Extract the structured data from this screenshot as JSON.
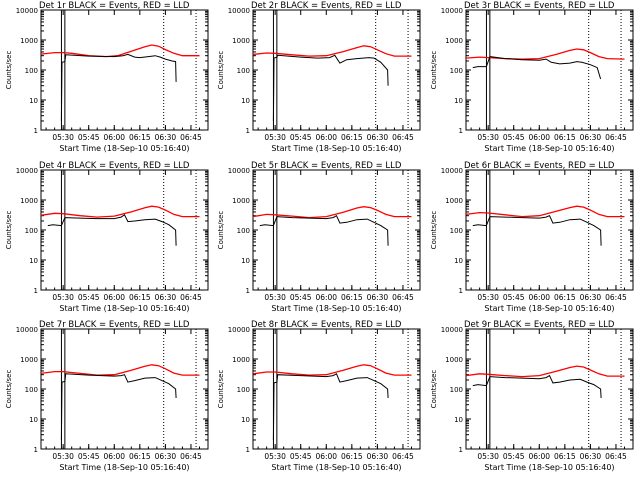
{
  "chart_data": {
    "type": "line",
    "figure": "RHESSI detector rate panels",
    "y_scale": "log",
    "ylim": [
      1,
      10000
    ],
    "y_ticks": [
      1,
      10,
      100,
      1000,
      10000
    ],
    "y_tick_labels": [
      "1",
      "10",
      "100",
      "1000",
      "10000"
    ],
    "ylabel": "Counts/sec",
    "xlabel": "Start Time (18-Sep-10 05:16:40)",
    "x_ticks": [
      "05:30",
      "05:45",
      "06:00",
      "06:15",
      "06:30",
      "06:45"
    ],
    "x_tick_minutes": [
      30,
      45,
      60,
      75,
      90,
      105
    ],
    "xlim_minutes": [
      17,
      115
    ],
    "series_colors": {
      "events": "#000000",
      "lld": "#ff0000"
    },
    "panels": [
      {
        "title": "Det 1r  BLACK = Events, RED = LLD",
        "events": [
          [
            29,
            2
          ],
          [
            29.3,
            180
          ],
          [
            31,
            190
          ],
          [
            31.5,
            320
          ],
          [
            45,
            290
          ],
          [
            60,
            280
          ],
          [
            65,
            300
          ],
          [
            68,
            330
          ],
          [
            72,
            270
          ],
          [
            75,
            260
          ],
          [
            80,
            280
          ],
          [
            84,
            300
          ],
          [
            87,
            270
          ],
          [
            90,
            230
          ],
          [
            94,
            200
          ],
          [
            96,
            190
          ],
          [
            96.3,
            40
          ]
        ],
        "lld": [
          [
            17,
            340
          ],
          [
            25,
            380
          ],
          [
            30,
            380
          ],
          [
            35,
            360
          ],
          [
            45,
            300
          ],
          [
            55,
            280
          ],
          [
            62,
            300
          ],
          [
            70,
            420
          ],
          [
            78,
            600
          ],
          [
            82,
            680
          ],
          [
            86,
            620
          ],
          [
            90,
            480
          ],
          [
            95,
            360
          ],
          [
            100,
            300
          ],
          [
            110,
            300
          ]
        ]
      },
      {
        "title": "Det 2r  BLACK = Events, RED = LLD",
        "events": [
          [
            29,
            2
          ],
          [
            29.3,
            250
          ],
          [
            31,
            270
          ],
          [
            31.5,
            310
          ],
          [
            45,
            270
          ],
          [
            55,
            250
          ],
          [
            62,
            260
          ],
          [
            65,
            310
          ],
          [
            68,
            170
          ],
          [
            72,
            220
          ],
          [
            78,
            240
          ],
          [
            85,
            260
          ],
          [
            88,
            250
          ],
          [
            92,
            180
          ],
          [
            96,
            100
          ],
          [
            96.3,
            30
          ]
        ],
        "lld": [
          [
            17,
            330
          ],
          [
            25,
            370
          ],
          [
            30,
            360
          ],
          [
            40,
            320
          ],
          [
            50,
            290
          ],
          [
            60,
            300
          ],
          [
            70,
            410
          ],
          [
            78,
            560
          ],
          [
            82,
            640
          ],
          [
            86,
            600
          ],
          [
            90,
            470
          ],
          [
            95,
            350
          ],
          [
            100,
            290
          ],
          [
            110,
            290
          ]
        ]
      },
      {
        "title": "Det 3r  BLACK = Events, RED = LLD",
        "events": [
          [
            21,
            120
          ],
          [
            24,
            130
          ],
          [
            29,
            130
          ],
          [
            31,
            280
          ],
          [
            40,
            240
          ],
          [
            50,
            220
          ],
          [
            60,
            210
          ],
          [
            64,
            230
          ],
          [
            67,
            180
          ],
          [
            72,
            160
          ],
          [
            78,
            170
          ],
          [
            82,
            190
          ],
          [
            85,
            180
          ],
          [
            90,
            150
          ],
          [
            94,
            120
          ],
          [
            96,
            50
          ]
        ],
        "lld": [
          [
            17,
            250
          ],
          [
            25,
            270
          ],
          [
            30,
            260
          ],
          [
            40,
            240
          ],
          [
            50,
            230
          ],
          [
            60,
            240
          ],
          [
            70,
            330
          ],
          [
            78,
            450
          ],
          [
            82,
            500
          ],
          [
            86,
            470
          ],
          [
            90,
            380
          ],
          [
            95,
            280
          ],
          [
            100,
            240
          ],
          [
            110,
            230
          ]
        ]
      },
      {
        "title": "Det 4r  BLACK = Events, RED = LLD",
        "events": [
          [
            21,
            140
          ],
          [
            24,
            150
          ],
          [
            29,
            140
          ],
          [
            31,
            260
          ],
          [
            40,
            250
          ],
          [
            50,
            240
          ],
          [
            60,
            240
          ],
          [
            64,
            270
          ],
          [
            66,
            320
          ],
          [
            68,
            190
          ],
          [
            72,
            200
          ],
          [
            78,
            220
          ],
          [
            84,
            230
          ],
          [
            88,
            190
          ],
          [
            92,
            150
          ],
          [
            96,
            100
          ],
          [
            96.3,
            30
          ]
        ],
        "lld": [
          [
            17,
            310
          ],
          [
            25,
            360
          ],
          [
            30,
            350
          ],
          [
            40,
            300
          ],
          [
            50,
            270
          ],
          [
            60,
            290
          ],
          [
            70,
            400
          ],
          [
            78,
            550
          ],
          [
            82,
            620
          ],
          [
            86,
            580
          ],
          [
            90,
            460
          ],
          [
            95,
            330
          ],
          [
            100,
            280
          ],
          [
            110,
            280
          ]
        ]
      },
      {
        "title": "Det 5r  BLACK = Events, RED = LLD",
        "events": [
          [
            21,
            140
          ],
          [
            24,
            150
          ],
          [
            29,
            140
          ],
          [
            31,
            280
          ],
          [
            40,
            260
          ],
          [
            50,
            250
          ],
          [
            60,
            240
          ],
          [
            64,
            260
          ],
          [
            66,
            300
          ],
          [
            68,
            170
          ],
          [
            72,
            180
          ],
          [
            78,
            220
          ],
          [
            84,
            230
          ],
          [
            88,
            180
          ],
          [
            92,
            140
          ],
          [
            96,
            100
          ],
          [
            96.3,
            30
          ]
        ],
        "lld": [
          [
            17,
            280
          ],
          [
            25,
            330
          ],
          [
            30,
            320
          ],
          [
            40,
            290
          ],
          [
            50,
            260
          ],
          [
            60,
            280
          ],
          [
            70,
            390
          ],
          [
            78,
            540
          ],
          [
            82,
            600
          ],
          [
            86,
            560
          ],
          [
            90,
            450
          ],
          [
            95,
            330
          ],
          [
            100,
            280
          ],
          [
            110,
            280
          ]
        ]
      },
      {
        "title": "Det 6r  BLACK = Events, RED = LLD",
        "events": [
          [
            21,
            140
          ],
          [
            24,
            150
          ],
          [
            29,
            140
          ],
          [
            31,
            280
          ],
          [
            40,
            270
          ],
          [
            50,
            260
          ],
          [
            60,
            250
          ],
          [
            64,
            270
          ],
          [
            66,
            300
          ],
          [
            68,
            170
          ],
          [
            72,
            180
          ],
          [
            78,
            220
          ],
          [
            84,
            230
          ],
          [
            88,
            180
          ],
          [
            92,
            140
          ],
          [
            96,
            100
          ],
          [
            96.3,
            30
          ]
        ],
        "lld": [
          [
            17,
            330
          ],
          [
            25,
            380
          ],
          [
            30,
            370
          ],
          [
            40,
            320
          ],
          [
            50,
            280
          ],
          [
            60,
            300
          ],
          [
            70,
            420
          ],
          [
            78,
            560
          ],
          [
            82,
            620
          ],
          [
            86,
            580
          ],
          [
            90,
            460
          ],
          [
            95,
            330
          ],
          [
            100,
            280
          ],
          [
            110,
            280
          ]
        ]
      },
      {
        "title": "Det 7r  BLACK = Events, RED = LLD",
        "events": [
          [
            29,
            2
          ],
          [
            29.3,
            170
          ],
          [
            31,
            180
          ],
          [
            31.5,
            320
          ],
          [
            45,
            290
          ],
          [
            60,
            270
          ],
          [
            64,
            280
          ],
          [
            66,
            300
          ],
          [
            68,
            170
          ],
          [
            72,
            190
          ],
          [
            78,
            230
          ],
          [
            84,
            240
          ],
          [
            88,
            190
          ],
          [
            92,
            150
          ],
          [
            96,
            100
          ],
          [
            96.3,
            50
          ]
        ],
        "lld": [
          [
            17,
            330
          ],
          [
            25,
            380
          ],
          [
            30,
            380
          ],
          [
            40,
            330
          ],
          [
            50,
            290
          ],
          [
            60,
            300
          ],
          [
            70,
            420
          ],
          [
            78,
            570
          ],
          [
            82,
            640
          ],
          [
            86,
            600
          ],
          [
            90,
            470
          ],
          [
            95,
            340
          ],
          [
            100,
            290
          ],
          [
            110,
            290
          ]
        ]
      },
      {
        "title": "Det 8r  BLACK = Events, RED = LLD",
        "events": [
          [
            29,
            2
          ],
          [
            29.3,
            160
          ],
          [
            31,
            170
          ],
          [
            31.5,
            300
          ],
          [
            45,
            280
          ],
          [
            60,
            260
          ],
          [
            64,
            280
          ],
          [
            66,
            320
          ],
          [
            68,
            170
          ],
          [
            72,
            190
          ],
          [
            78,
            230
          ],
          [
            84,
            240
          ],
          [
            88,
            190
          ],
          [
            92,
            150
          ],
          [
            96,
            100
          ],
          [
            96.3,
            50
          ]
        ],
        "lld": [
          [
            17,
            320
          ],
          [
            25,
            370
          ],
          [
            30,
            370
          ],
          [
            40,
            320
          ],
          [
            50,
            290
          ],
          [
            60,
            300
          ],
          [
            70,
            420
          ],
          [
            78,
            570
          ],
          [
            82,
            640
          ],
          [
            86,
            600
          ],
          [
            90,
            470
          ],
          [
            95,
            340
          ],
          [
            100,
            290
          ],
          [
            110,
            290
          ]
        ]
      },
      {
        "title": "Det 9r  BLACK = Events, RED = LLD",
        "events": [
          [
            21,
            130
          ],
          [
            24,
            140
          ],
          [
            29,
            130
          ],
          [
            31,
            260
          ],
          [
            40,
            240
          ],
          [
            50,
            230
          ],
          [
            60,
            220
          ],
          [
            64,
            240
          ],
          [
            66,
            280
          ],
          [
            68,
            160
          ],
          [
            72,
            170
          ],
          [
            78,
            200
          ],
          [
            84,
            210
          ],
          [
            88,
            170
          ],
          [
            92,
            140
          ],
          [
            96,
            100
          ],
          [
            96.3,
            50
          ]
        ],
        "lld": [
          [
            17,
            280
          ],
          [
            25,
            320
          ],
          [
            30,
            310
          ],
          [
            40,
            280
          ],
          [
            50,
            260
          ],
          [
            60,
            280
          ],
          [
            70,
            390
          ],
          [
            78,
            520
          ],
          [
            82,
            580
          ],
          [
            86,
            540
          ],
          [
            90,
            430
          ],
          [
            95,
            320
          ],
          [
            100,
            270
          ],
          [
            110,
            270
          ]
        ]
      }
    ],
    "markers_minutes": {
      "solid": [
        29,
        31
      ],
      "dotted": [
        89,
        108
      ]
    }
  }
}
